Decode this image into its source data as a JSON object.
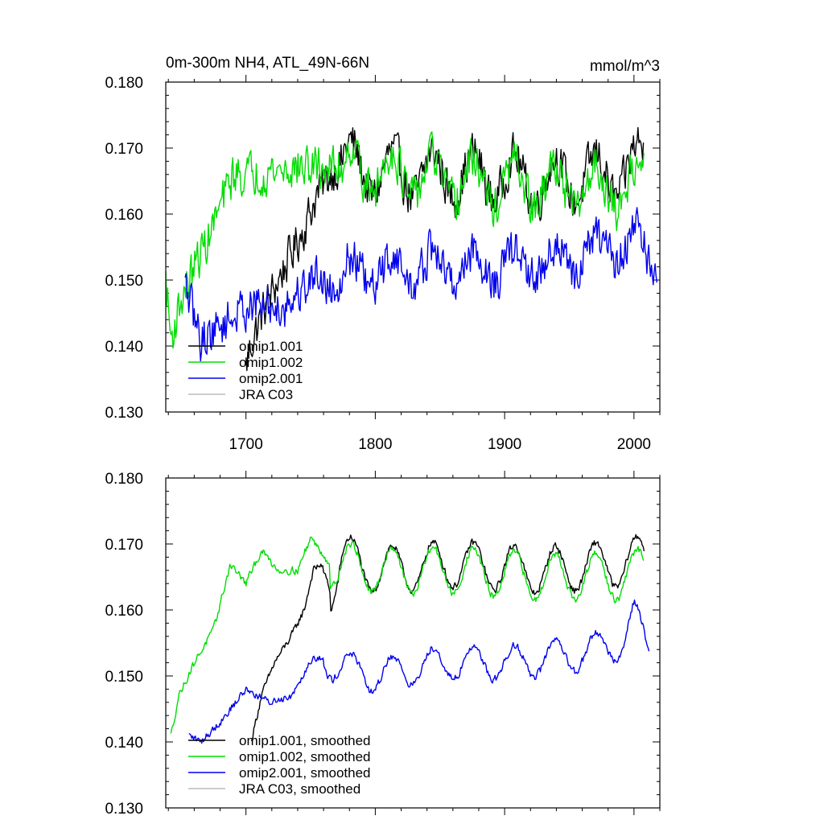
{
  "chart_data": [
    {
      "type": "line",
      "title": "0m-300m NH4, ATL_49N-66N",
      "units": "mmol/m^3",
      "xlabel": "",
      "ylabel": "",
      "xlim": [
        1638,
        2020
      ],
      "ylim": [
        0.13,
        0.18
      ],
      "x_ticks": [
        1700,
        1800,
        1900,
        2000
      ],
      "x_tick_labels": [
        "1700",
        "1800",
        "1900",
        "2000"
      ],
      "y_ticks": [
        0.13,
        0.14,
        0.15,
        0.16,
        0.17,
        0.18
      ],
      "y_tick_labels": [
        "0.130",
        "0.140",
        "0.150",
        "0.160",
        "0.170",
        "0.180"
      ],
      "legend_position": "bottom-left",
      "series": [
        {
          "name": "omip1.001",
          "color": "#000000",
          "anchors": [
            [
              1700,
              0.137
            ],
            [
              1705,
              0.141
            ],
            [
              1715,
              0.146
            ],
            [
              1725,
              0.15
            ],
            [
              1735,
              0.154
            ],
            [
              1745,
              0.158
            ],
            [
              1755,
              0.163
            ],
            [
              1765,
              0.166
            ],
            [
              1775,
              0.168
            ],
            [
              1800,
              0.166
            ],
            [
              1860,
              0.166
            ],
            [
              1930,
              0.165
            ],
            [
              1990,
              0.166
            ],
            [
              2008,
              0.168
            ]
          ],
          "cycle_amp": 0.0035,
          "noise": 0.0045,
          "cycle_start": 1775
        },
        {
          "name": "omip1.002",
          "color": "#00dd00",
          "anchors": [
            [
              1638,
              0.15
            ],
            [
              1642,
              0.141
            ],
            [
              1650,
              0.147
            ],
            [
              1660,
              0.152
            ],
            [
              1670,
              0.156
            ],
            [
              1680,
              0.161
            ],
            [
              1690,
              0.166
            ],
            [
              1700,
              0.166
            ],
            [
              1740,
              0.167
            ],
            [
              1775,
              0.167
            ],
            [
              1860,
              0.165
            ],
            [
              1930,
              0.164
            ],
            [
              1990,
              0.164
            ],
            [
              2008,
              0.165
            ]
          ],
          "cycle_amp": 0.0035,
          "noise": 0.0045,
          "cycle_start": 1775
        },
        {
          "name": "omip2.001",
          "color": "#0000ee",
          "anchors": [
            [
              1653,
              0.149
            ],
            [
              1665,
              0.141
            ],
            [
              1680,
              0.143
            ],
            [
              1700,
              0.146
            ],
            [
              1730,
              0.146
            ],
            [
              1755,
              0.151
            ],
            [
              1800,
              0.151
            ],
            [
              1850,
              0.152
            ],
            [
              1900,
              0.152
            ],
            [
              1950,
              0.153
            ],
            [
              2000,
              0.156
            ],
            [
              2018,
              0.152
            ]
          ],
          "cycle_amp": 0.0025,
          "noise": 0.0045,
          "cycle_start": 1760
        },
        {
          "name": "JRA C03",
          "color": "#bbbbbb",
          "anchors": []
        }
      ]
    },
    {
      "type": "line",
      "title": "",
      "xlabel": "",
      "ylabel": "",
      "xlim": [
        1638,
        2020
      ],
      "ylim": [
        0.13,
        0.18
      ],
      "y_ticks": [
        0.13,
        0.14,
        0.15,
        0.16,
        0.17,
        0.18
      ],
      "y_tick_labels": [
        "0.130",
        "0.140",
        "0.150",
        "0.160",
        "0.170",
        "0.180"
      ],
      "legend_position": "bottom-left",
      "series": [
        {
          "name": "omip1.001, smoothed",
          "color": "#000000",
          "anchors": [
            [
              1704,
              0.14
            ],
            [
              1712,
              0.147
            ],
            [
              1722,
              0.152
            ],
            [
              1735,
              0.156
            ],
            [
              1745,
              0.16
            ],
            [
              1752,
              0.166
            ],
            [
              1758,
              0.167
            ],
            [
              1765,
              0.163
            ],
            [
              1775,
              0.168
            ],
            [
              1800,
              0.166
            ],
            [
              1860,
              0.167
            ],
            [
              1930,
              0.166
            ],
            [
              1990,
              0.167
            ],
            [
              2008,
              0.168
            ]
          ],
          "cycle_amp": 0.0035,
          "noise": 0.0008,
          "cycle_start": 1765
        },
        {
          "name": "omip1.002, smoothed",
          "color": "#00dd00",
          "anchors": [
            [
              1642,
              0.141
            ],
            [
              1648,
              0.147
            ],
            [
              1660,
              0.152
            ],
            [
              1675,
              0.157
            ],
            [
              1688,
              0.167
            ],
            [
              1700,
              0.164
            ],
            [
              1712,
              0.169
            ],
            [
              1725,
              0.166
            ],
            [
              1740,
              0.166
            ],
            [
              1750,
              0.171
            ],
            [
              1765,
              0.167
            ],
            [
              1800,
              0.166
            ],
            [
              1860,
              0.166
            ],
            [
              1930,
              0.165
            ],
            [
              1990,
              0.165
            ],
            [
              2008,
              0.166
            ]
          ],
          "cycle_amp": 0.0035,
          "noise": 0.0008,
          "cycle_start": 1765
        },
        {
          "name": "omip2.001, smoothed",
          "color": "#0000ee",
          "anchors": [
            [
              1656,
              0.141
            ],
            [
              1665,
              0.14
            ],
            [
              1680,
              0.143
            ],
            [
              1700,
              0.148
            ],
            [
              1718,
              0.146
            ],
            [
              1735,
              0.147
            ],
            [
              1752,
              0.153
            ],
            [
              1780,
              0.151
            ],
            [
              1800,
              0.15
            ],
            [
              1850,
              0.152
            ],
            [
              1900,
              0.152
            ],
            [
              1950,
              0.153
            ],
            [
              1990,
              0.155
            ],
            [
              2000,
              0.159
            ],
            [
              2012,
              0.154
            ]
          ],
          "cycle_amp": 0.0025,
          "noise": 0.0008,
          "cycle_start": 1760
        },
        {
          "name": "JRA C03, smoothed",
          "color": "#bbbbbb",
          "anchors": []
        }
      ]
    }
  ]
}
